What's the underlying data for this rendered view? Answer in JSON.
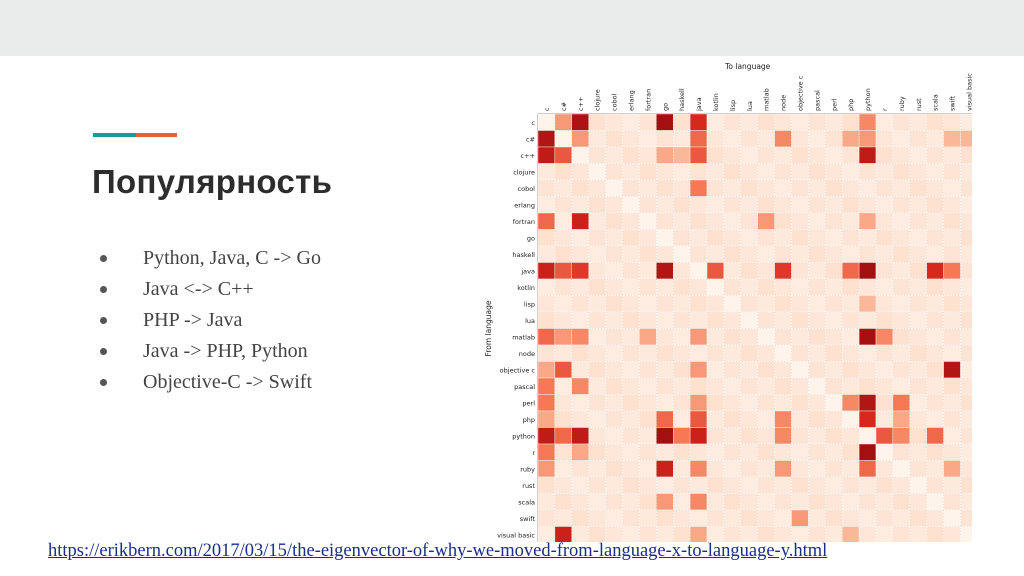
{
  "slide": {
    "title": "Популярность",
    "bullets": [
      "Python, Java, C -> Go",
      "Java <-> C++",
      "PHP -> Java",
      "Java -> PHP, Python",
      "Objective-C -> Swift"
    ],
    "link": "https://erikbern.com/2017/03/15/the-eigenvector-of-why-we-moved-from-language-x-to-language-y.html",
    "colors": {
      "teal": "#1b9b93",
      "orange": "#e8622d",
      "title": "#2d2d2d",
      "link": "#1a2d8a"
    }
  },
  "chart_data": {
    "type": "heatmap",
    "title": "To language",
    "xlabel": "To language",
    "ylabel": "From language",
    "languages": [
      "c",
      "c#",
      "c++",
      "clojure",
      "cobol",
      "erlang",
      "fortran",
      "go",
      "haskell",
      "java",
      "kotlin",
      "lisp",
      "lua",
      "matlab",
      "node",
      "objective c",
      "pascal",
      "perl",
      "php",
      "python",
      "r",
      "ruby",
      "rust",
      "scala",
      "swift",
      "visual basic"
    ],
    "colormap": "white-to-dark-red",
    "cells": [
      {
        "from": "c",
        "to": "c++",
        "v": 0.92
      },
      {
        "from": "c",
        "to": "go",
        "v": 0.95
      },
      {
        "from": "c",
        "to": "java",
        "v": 0.75
      },
      {
        "from": "c",
        "to": "python",
        "v": 0.45
      },
      {
        "from": "c",
        "to": "c#",
        "v": 0.4
      },
      {
        "from": "c#",
        "to": "c",
        "v": 0.9
      },
      {
        "from": "c#",
        "to": "c++",
        "v": 0.4
      },
      {
        "from": "c#",
        "to": "java",
        "v": 0.55
      },
      {
        "from": "c#",
        "to": "node",
        "v": 0.45
      },
      {
        "from": "c#",
        "to": "php",
        "v": 0.35
      },
      {
        "from": "c#",
        "to": "python",
        "v": 0.4
      },
      {
        "from": "c#",
        "to": "swift",
        "v": 0.3
      },
      {
        "from": "c#",
        "to": "visual basic",
        "v": 0.3
      },
      {
        "from": "c++",
        "to": "c",
        "v": 0.85
      },
      {
        "from": "c++",
        "to": "c#",
        "v": 0.6
      },
      {
        "from": "c++",
        "to": "java",
        "v": 0.6
      },
      {
        "from": "c++",
        "to": "go",
        "v": 0.35
      },
      {
        "from": "c++",
        "to": "python",
        "v": 0.85
      },
      {
        "from": "c++",
        "to": "haskell",
        "v": 0.3
      },
      {
        "from": "cobol",
        "to": "java",
        "v": 0.5
      },
      {
        "from": "fortran",
        "to": "c",
        "v": 0.55
      },
      {
        "from": "fortran",
        "to": "c++",
        "v": 0.8
      },
      {
        "from": "fortran",
        "to": "matlab",
        "v": 0.4
      },
      {
        "from": "fortran",
        "to": "python",
        "v": 0.35
      },
      {
        "from": "java",
        "to": "c",
        "v": 0.8
      },
      {
        "from": "java",
        "to": "c#",
        "v": 0.6
      },
      {
        "from": "java",
        "to": "c++",
        "v": 0.7
      },
      {
        "from": "java",
        "to": "go",
        "v": 0.9
      },
      {
        "from": "java",
        "to": "kotlin",
        "v": 0.6
      },
      {
        "from": "java",
        "to": "node",
        "v": 0.7
      },
      {
        "from": "java",
        "to": "php",
        "v": 0.55
      },
      {
        "from": "java",
        "to": "python",
        "v": 0.95
      },
      {
        "from": "java",
        "to": "scala",
        "v": 0.75
      },
      {
        "from": "java",
        "to": "swift",
        "v": 0.5
      },
      {
        "from": "lisp",
        "to": "python",
        "v": 0.3
      },
      {
        "from": "matlab",
        "to": "c",
        "v": 0.55
      },
      {
        "from": "matlab",
        "to": "c#",
        "v": 0.4
      },
      {
        "from": "matlab",
        "to": "c++",
        "v": 0.45
      },
      {
        "from": "matlab",
        "to": "fortran",
        "v": 0.35
      },
      {
        "from": "matlab",
        "to": "java",
        "v": 0.4
      },
      {
        "from": "matlab",
        "to": "python",
        "v": 0.95
      },
      {
        "from": "matlab",
        "to": "r",
        "v": 0.45
      },
      {
        "from": "objective c",
        "to": "c",
        "v": 0.35
      },
      {
        "from": "objective c",
        "to": "c#",
        "v": 0.6
      },
      {
        "from": "objective c",
        "to": "swift",
        "v": 0.9
      },
      {
        "from": "objective c",
        "to": "java",
        "v": 0.4
      },
      {
        "from": "pascal",
        "to": "c",
        "v": 0.5
      },
      {
        "from": "pascal",
        "to": "c++",
        "v": 0.45
      },
      {
        "from": "perl",
        "to": "c",
        "v": 0.5
      },
      {
        "from": "perl",
        "to": "java",
        "v": 0.4
      },
      {
        "from": "perl",
        "to": "php",
        "v": 0.45
      },
      {
        "from": "perl",
        "to": "python",
        "v": 0.9
      },
      {
        "from": "perl",
        "to": "ruby",
        "v": 0.5
      },
      {
        "from": "php",
        "to": "c",
        "v": 0.35
      },
      {
        "from": "php",
        "to": "go",
        "v": 0.55
      },
      {
        "from": "php",
        "to": "java",
        "v": 0.6
      },
      {
        "from": "php",
        "to": "node",
        "v": 0.45
      },
      {
        "from": "php",
        "to": "python",
        "v": 0.75
      },
      {
        "from": "php",
        "to": "ruby",
        "v": 0.35
      },
      {
        "from": "python",
        "to": "c",
        "v": 0.85
      },
      {
        "from": "python",
        "to": "c#",
        "v": 0.55
      },
      {
        "from": "python",
        "to": "c++",
        "v": 0.85
      },
      {
        "from": "python",
        "to": "go",
        "v": 0.95
      },
      {
        "from": "python",
        "to": "haskell",
        "v": 0.5
      },
      {
        "from": "python",
        "to": "java",
        "v": 0.8
      },
      {
        "from": "python",
        "to": "r",
        "v": 0.6
      },
      {
        "from": "python",
        "to": "ruby",
        "v": 0.45
      },
      {
        "from": "python",
        "to": "node",
        "v": 0.45
      },
      {
        "from": "python",
        "to": "scala",
        "v": 0.55
      },
      {
        "from": "r",
        "to": "c",
        "v": 0.5
      },
      {
        "from": "r",
        "to": "c++",
        "v": 0.35
      },
      {
        "from": "r",
        "to": "python",
        "v": 0.95
      },
      {
        "from": "ruby",
        "to": "c",
        "v": 0.4
      },
      {
        "from": "ruby",
        "to": "go",
        "v": 0.8
      },
      {
        "from": "ruby",
        "to": "java",
        "v": 0.45
      },
      {
        "from": "ruby",
        "to": "python",
        "v": 0.55
      },
      {
        "from": "ruby",
        "to": "node",
        "v": 0.4
      },
      {
        "from": "ruby",
        "to": "swift",
        "v": 0.35
      },
      {
        "from": "scala",
        "to": "go",
        "v": 0.4
      },
      {
        "from": "scala",
        "to": "java",
        "v": 0.45
      },
      {
        "from": "swift",
        "to": "objective c",
        "v": 0.4
      },
      {
        "from": "visual basic",
        "to": "c#",
        "v": 0.8
      },
      {
        "from": "visual basic",
        "to": "java",
        "v": 0.35
      },
      {
        "from": "visual basic",
        "to": "php",
        "v": 0.3
      }
    ],
    "background_value": 0.06
  }
}
